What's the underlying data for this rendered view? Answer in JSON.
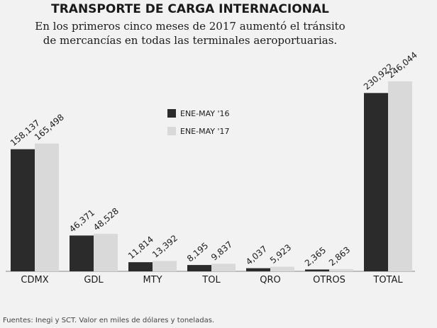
{
  "chart_data": {
    "type": "bar",
    "title": "TRANSPORTE DE CARGA INTERNACIONAL",
    "subtitle": [
      "En los primeros cinco meses de 2017 aumentó el tránsito",
      "de mercancías en todas las terminales aeroportuarias."
    ],
    "categories": [
      "CDMX",
      "GDL",
      "MTY",
      "TOL",
      "QRO",
      "OTROS",
      "TOTAL"
    ],
    "series": [
      {
        "name": "ENE-MAY '16",
        "color": "#2b2b2b",
        "values": [
          158137,
          46371,
          11814,
          8195,
          4037,
          2365,
          230922
        ],
        "value_labels": [
          "158,137",
          "46,371",
          "11,814",
          "8,195",
          "4,037",
          "2,365",
          "230,922"
        ]
      },
      {
        "name": "ENE-MAY '17",
        "color": "#d9d9d9",
        "values": [
          165498,
          48528,
          13392,
          9837,
          5923,
          2863,
          246044
        ],
        "value_labels": [
          "165,498",
          "48,528",
          "13,392",
          "9,837",
          "5,923",
          "2,863",
          "246,044"
        ]
      }
    ],
    "source": "Fuentes: Inegi y SCT. Valor en miles de dólares y toneladas."
  }
}
